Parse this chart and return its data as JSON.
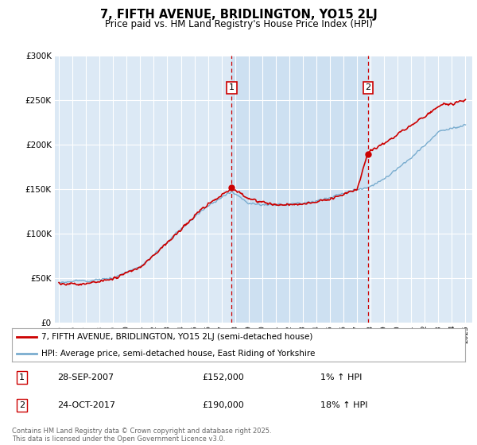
{
  "title": "7, FIFTH AVENUE, BRIDLINGTON, YO15 2LJ",
  "subtitle": "Price paid vs. HM Land Registry's House Price Index (HPI)",
  "legend_line1": "7, FIFTH AVENUE, BRIDLINGTON, YO15 2LJ (semi-detached house)",
  "legend_line2": "HPI: Average price, semi-detached house, East Riding of Yorkshire",
  "annotation1": {
    "label": "1",
    "date": "28-SEP-2007",
    "price": "£152,000",
    "hpi": "1% ↑ HPI",
    "year": 2007.75
  },
  "annotation2": {
    "label": "2",
    "date": "24-OCT-2017",
    "price": "£190,000",
    "hpi": "18% ↑ HPI",
    "year": 2017.82
  },
  "footer": "Contains HM Land Registry data © Crown copyright and database right 2025.\nThis data is licensed under the Open Government Licence v3.0.",
  "background_color": "#dce9f5",
  "red_color": "#cc0000",
  "blue_color": "#7aadcf",
  "highlight_color": "#c8ddf0",
  "ylim": [
    0,
    300000
  ],
  "xlim": [
    1994.7,
    2025.5
  ],
  "yticks": [
    0,
    50000,
    100000,
    150000,
    200000,
    250000,
    300000
  ]
}
